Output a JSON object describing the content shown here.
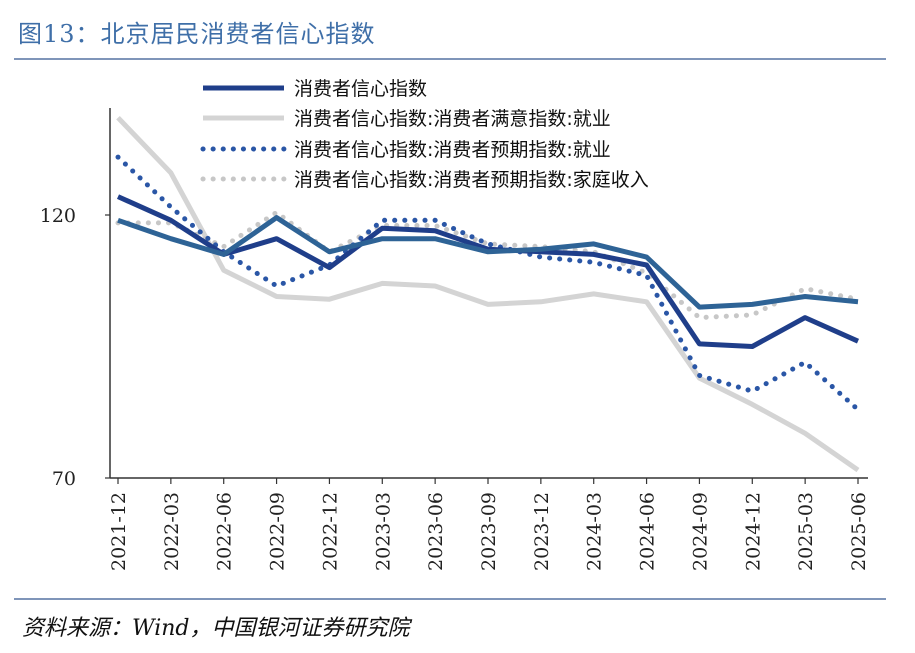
{
  "figure": {
    "title": "图13：北京居民消费者信心指数",
    "source": "资料来源：Wind，中国银河证券研究院"
  },
  "chart_data": {
    "type": "line",
    "title": "图13：北京居民消费者信心指数",
    "xlabel": "",
    "ylabel": "",
    "x": [
      "2021-12",
      "2022-03",
      "2022-06",
      "2022-09",
      "2022-12",
      "2023-03",
      "2023-06",
      "2023-09",
      "2023-12",
      "2024-03",
      "2024-06",
      "2024-09",
      "2024-12",
      "2025-03",
      "2025-06"
    ],
    "yticks": [
      70,
      120
    ],
    "ylim": [
      70,
      140
    ],
    "legend_position": "top",
    "grid": false,
    "series": [
      {
        "name": "消费者信心指数",
        "style": "solid",
        "color": "#1f3e8a",
        "values": [
          123.5,
          119.0,
          112.5,
          115.5,
          110.0,
          117.5,
          117.0,
          113.5,
          113.0,
          112.5,
          110.5,
          95.5,
          95.0,
          100.5,
          96.0
        ]
      },
      {
        "name": "消费者信心指数:消费者满意指数:就业",
        "style": "solid",
        "color": "#d4d4d4",
        "values": [
          138.5,
          128.0,
          109.5,
          104.5,
          104.0,
          107.0,
          106.5,
          103.0,
          103.5,
          105.0,
          103.5,
          89.0,
          84.0,
          78.5,
          71.5
        ]
      },
      {
        "name": "消费者信心指数:消费者预期指数:就业",
        "style": "dotted",
        "color": "#2a56a6",
        "values": [
          131.0,
          121.5,
          113.0,
          106.5,
          110.5,
          119.0,
          119.0,
          114.5,
          112.0,
          111.0,
          108.5,
          89.5,
          86.5,
          92.0,
          83.0
        ]
      },
      {
        "name": "消费者信心指数:消费者预期指数:家庭收入",
        "style": "dotted",
        "color": "#c7c7c7",
        "values": [
          118.5,
          118.5,
          114.0,
          120.5,
          113.0,
          118.0,
          118.0,
          114.5,
          114.0,
          113.0,
          109.0,
          100.5,
          101.0,
          106.0,
          104.0
        ]
      },
      {
        "name": "",
        "style": "solid",
        "color": "#2e6396",
        "values": [
          119.0,
          115.5,
          112.5,
          119.5,
          113.0,
          115.5,
          115.5,
          113.0,
          113.5,
          114.5,
          112.0,
          102.5,
          103.0,
          104.5,
          103.5
        ]
      }
    ]
  }
}
